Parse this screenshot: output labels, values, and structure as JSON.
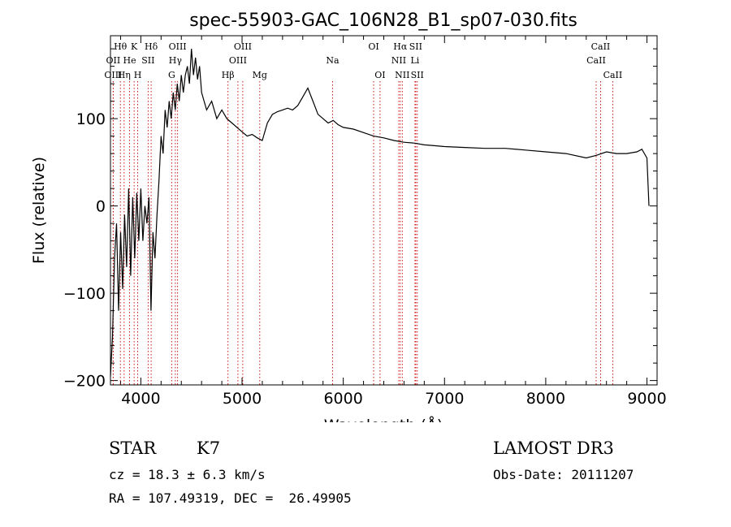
{
  "chart_data": {
    "type": "line",
    "title": "spec-55903-GAC_106N28_B1_sp07-030.fits",
    "xlabel": "Wavelength (Å)",
    "ylabel": "Flux (relative)",
    "xlim": [
      3700,
      9100
    ],
    "ylim": [
      -205,
      195
    ],
    "xticks": [
      4000,
      5000,
      6000,
      7000,
      8000,
      9000
    ],
    "yticks": [
      -200,
      -100,
      0,
      100
    ],
    "grid": false,
    "series": [
      {
        "name": "spectrum",
        "x": [
          3700,
          3720,
          3740,
          3760,
          3780,
          3800,
          3820,
          3840,
          3860,
          3880,
          3900,
          3920,
          3940,
          3960,
          3980,
          4000,
          4020,
          4040,
          4060,
          4080,
          4100,
          4120,
          4140,
          4160,
          4180,
          4200,
          4220,
          4240,
          4260,
          4280,
          4300,
          4320,
          4340,
          4360,
          4380,
          4400,
          4420,
          4440,
          4460,
          4480,
          4500,
          4520,
          4540,
          4560,
          4580,
          4600,
          4650,
          4700,
          4750,
          4800,
          4850,
          4900,
          4950,
          5000,
          5050,
          5100,
          5150,
          5200,
          5250,
          5300,
          5350,
          5400,
          5450,
          5500,
          5550,
          5600,
          5650,
          5700,
          5750,
          5800,
          5850,
          5900,
          5950,
          6000,
          6100,
          6200,
          6300,
          6400,
          6500,
          6600,
          6700,
          6800,
          6900,
          7000,
          7200,
          7400,
          7600,
          7800,
          8000,
          8200,
          8400,
          8500,
          8600,
          8700,
          8800,
          8900,
          8950,
          9000,
          9020
        ],
        "values": [
          -195,
          -150,
          -60,
          -20,
          -120,
          -30,
          -95,
          -10,
          -70,
          20,
          -80,
          10,
          -60,
          15,
          -40,
          20,
          -40,
          0,
          -20,
          10,
          -120,
          -30,
          -60,
          -10,
          30,
          80,
          60,
          110,
          90,
          120,
          100,
          130,
          110,
          140,
          120,
          150,
          130,
          150,
          160,
          140,
          180,
          150,
          170,
          145,
          160,
          130,
          110,
          120,
          100,
          110,
          100,
          95,
          90,
          85,
          80,
          82,
          78,
          75,
          95,
          105,
          108,
          110,
          112,
          110,
          115,
          125,
          135,
          120,
          105,
          100,
          95,
          98,
          93,
          90,
          88,
          84,
          80,
          78,
          75,
          73,
          72,
          70,
          69,
          68,
          67,
          66,
          66,
          64,
          62,
          60,
          55,
          58,
          62,
          60,
          60,
          62,
          65,
          55,
          0
        ]
      }
    ],
    "lines": [
      {
        "label": "Hθ",
        "wave": 3798,
        "row": 1
      },
      {
        "label": "OII",
        "wave": 3727,
        "row": 2
      },
      {
        "label": "OIII",
        "wave": 3727,
        "row": 3
      },
      {
        "label": "K",
        "wave": 3934,
        "row": 1
      },
      {
        "label": "He",
        "wave": 3889,
        "row": 2
      },
      {
        "label": "Hη",
        "wave": 3835,
        "row": 3
      },
      {
        "label": "Hδ",
        "wave": 4102,
        "row": 1
      },
      {
        "label": "SII",
        "wave": 4072,
        "row": 2
      },
      {
        "label": "H",
        "wave": 3969,
        "row": 3
      },
      {
        "label": "OIII",
        "wave": 4363,
        "row": 1
      },
      {
        "label": "Hγ",
        "wave": 4341,
        "row": 2
      },
      {
        "label": "G",
        "wave": 4305,
        "row": 3
      },
      {
        "label": "OIII",
        "wave": 5007,
        "row": 1
      },
      {
        "label": "OIII",
        "wave": 4959,
        "row": 2
      },
      {
        "label": "Hβ",
        "wave": 4861,
        "row": 3
      },
      {
        "label": "Mg",
        "wave": 5175,
        "row": 3
      },
      {
        "label": "Na",
        "wave": 5894,
        "row": 2
      },
      {
        "label": "OI",
        "wave": 6300,
        "row": 1
      },
      {
        "label": "OI",
        "wave": 6363,
        "row": 3
      },
      {
        "label": "Hα",
        "wave": 6563,
        "row": 1
      },
      {
        "label": "SII",
        "wave": 6716,
        "row": 1
      },
      {
        "label": "NII",
        "wave": 6548,
        "row": 2
      },
      {
        "label": "Li",
        "wave": 6708,
        "row": 2
      },
      {
        "label": "NII",
        "wave": 6583,
        "row": 3
      },
      {
        "label": "SII",
        "wave": 6731,
        "row": 3
      },
      {
        "label": "CaII",
        "wave": 8542,
        "row": 1
      },
      {
        "label": "CaII",
        "wave": 8498,
        "row": 2
      },
      {
        "label": "CaII",
        "wave": 8662,
        "row": 3
      }
    ]
  },
  "info": {
    "object_class": "STAR",
    "subclass": "K7",
    "survey": "LAMOST DR3",
    "redshift": "cz = 18.3 ± 6.3 km/s",
    "obs_date": "Obs-Date: 20111207",
    "coords": "RA = 107.49319, DEC =  26.49905"
  }
}
